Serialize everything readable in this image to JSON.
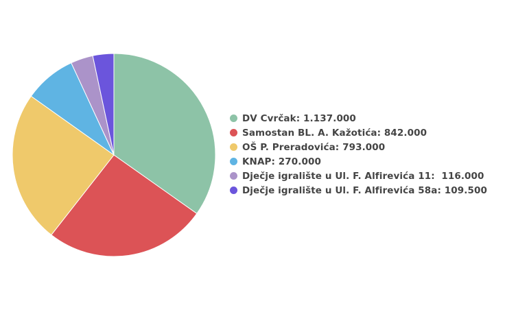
{
  "chart_data": {
    "type": "pie",
    "title": "",
    "legend_position": "right",
    "categories": [
      "DV Cvrčak",
      "Samostan BL. A. Kažotića",
      "OŠ P. Preradovića",
      "KNAP",
      "Dječje igralište u Ul. F. Alfirevića 11",
      "Dječje igralište u Ul. F. Alfirevića 58a"
    ],
    "values": [
      1137000,
      842000,
      793000,
      270000,
      116000,
      109500
    ],
    "colors": [
      "#8dc3a7",
      "#dc5356",
      "#efc96b",
      "#5fb4e3",
      "#ab93c9",
      "#6b55dc"
    ]
  },
  "legend": {
    "items": [
      {
        "label": "DV Cvrčak: 1.137.000",
        "color": "#8dc3a7"
      },
      {
        "label": "Samostan BL. A. Kažotića: 842.000",
        "color": "#dc5356"
      },
      {
        "label": "OŠ P. Preradovića: 793.000",
        "color": "#efc96b"
      },
      {
        "label": "KNAP: 270.000",
        "color": "#5fb4e3"
      },
      {
        "label": "Dječje igralište u Ul. F. Alfirevića 11:  116.000",
        "color": "#ab93c9"
      },
      {
        "label": "Dječje igralište u Ul. F. Alfirevića 58a: 109.500",
        "color": "#6b55dc"
      }
    ]
  }
}
